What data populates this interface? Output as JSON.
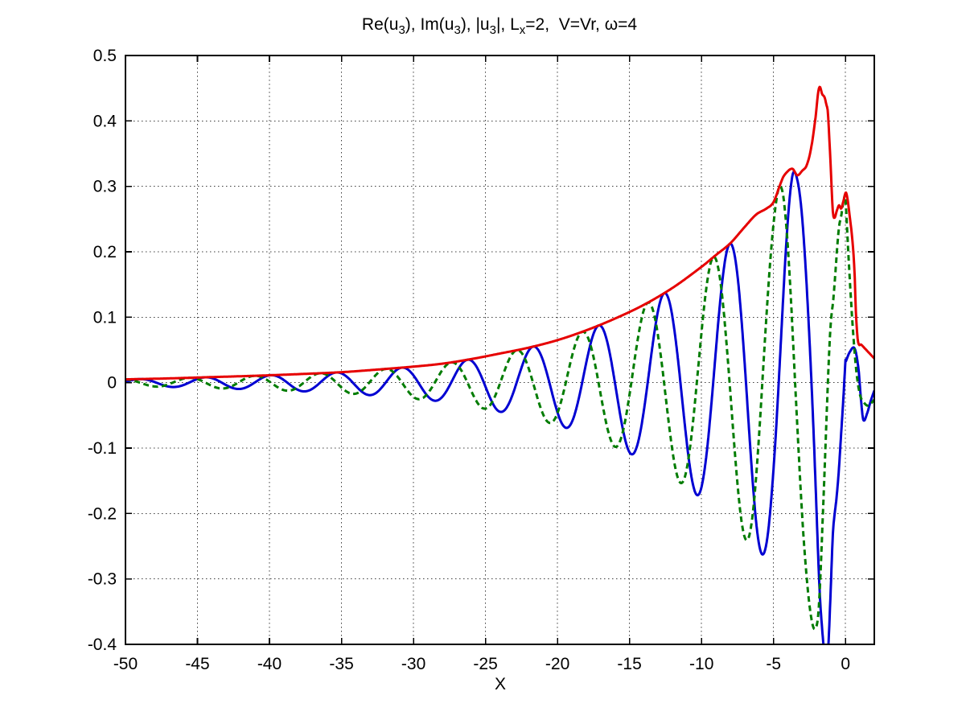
{
  "window": {
    "background": "#ffffff"
  },
  "title": {
    "plain": "Re(u3), Im(u3), |u3|, Lx=2,  V=Vr, ω=4",
    "parts": [
      {
        "t": "Re(u"
      },
      {
        "t": "3",
        "sub": true
      },
      {
        "t": "), Im(u"
      },
      {
        "t": "3",
        "sub": true
      },
      {
        "t": "), |u"
      },
      {
        "t": "3",
        "sub": true
      },
      {
        "t": "|, L"
      },
      {
        "t": "x",
        "sub": true
      },
      {
        "t": "=2,  V=Vr, ω=4"
      }
    ]
  },
  "chart_data": {
    "type": "line",
    "title": "Re(u3), Im(u3), |u3|, Lx=2,  V=Vr, ω=4",
    "xlabel": "X",
    "ylabel": "",
    "xlim": [
      -50,
      2
    ],
    "ylim": [
      -0.4,
      0.5
    ],
    "grid": "dotted-black-at-every-tick",
    "legend": "none",
    "box": true,
    "tick_style": "inward-on-all-four-sides",
    "x_ticks": {
      "values": [
        -50,
        -45,
        -40,
        -35,
        -30,
        -25,
        -20,
        -15,
        -10,
        -5,
        0
      ],
      "labels": [
        "-50",
        "-45",
        "-40",
        "-35",
        "-30",
        "-25",
        "-20",
        "-15",
        "-10",
        "-5",
        "0"
      ]
    },
    "y_ticks": {
      "values": [
        0.5,
        0.4,
        0.3,
        0.2,
        0.1,
        0,
        -0.1,
        -0.2,
        -0.3,
        -0.4
      ],
      "labels": [
        "0.5",
        "0.4",
        "0.3",
        "0.2",
        "0.1",
        "0",
        "-0.1",
        "-0.2",
        "-0.3",
        "-0.4"
      ]
    },
    "series": [
      {
        "name": "Re(u3)",
        "color": "#0000d2",
        "line_style": "solid",
        "line_width": 3,
        "construction": "envelope(x)*cos(k*(x-x0)) for x<=0, then tail_points",
        "tail_points": [
          [
            0,
            0.031
          ],
          [
            0.3,
            0.047
          ],
          [
            0.64,
            0.052
          ],
          [
            0.9,
            0.021
          ],
          [
            1.08,
            -0.027
          ],
          [
            1.24,
            -0.057
          ],
          [
            1.5,
            -0.047
          ],
          [
            1.75,
            -0.028
          ],
          [
            2,
            -0.012
          ]
        ]
      },
      {
        "name": "Im(u3)",
        "color": "#007c00",
        "line_style": "dashed",
        "line_width": 3,
        "construction": "-envelope(x)*sin(k*(x-x0)) for x<=0, then tail_points",
        "tail_points": [
          [
            0,
            0.283
          ],
          [
            0.25,
            0.176
          ],
          [
            0.5,
            0.086
          ],
          [
            0.75,
            0.018
          ],
          [
            1.0,
            -0.018
          ],
          [
            1.3,
            -0.031
          ],
          [
            1.6,
            -0.035
          ],
          [
            2,
            -0.026
          ]
        ]
      },
      {
        "name": "|u3|",
        "color": "#e60000",
        "line_style": "solid",
        "line_width": 3,
        "construction": "envelope(x) over full domain [-50,2]"
      }
    ],
    "phase_model": {
      "k": 1.381,
      "x0": -3.5,
      "period": 4.55
    },
    "envelope_points": [
      [
        -50,
        0.005
      ],
      [
        -47,
        0.0065
      ],
      [
        -44,
        0.0085
      ],
      [
        -41,
        0.0105
      ],
      [
        -38,
        0.013
      ],
      [
        -35,
        0.016
      ],
      [
        -32.5,
        0.02
      ],
      [
        -30,
        0.0245
      ],
      [
        -28,
        0.029
      ],
      [
        -26,
        0.036
      ],
      [
        -24,
        0.0445
      ],
      [
        -22,
        0.0535
      ],
      [
        -20,
        0.065
      ],
      [
        -18,
        0.08
      ],
      [
        -16,
        0.098
      ],
      [
        -14,
        0.119
      ],
      [
        -12,
        0.145
      ],
      [
        -10,
        0.177
      ],
      [
        -9,
        0.195
      ],
      [
        -8,
        0.213
      ],
      [
        -7,
        0.238
      ],
      [
        -6.2,
        0.257
      ],
      [
        -5.5,
        0.266
      ],
      [
        -5,
        0.276
      ],
      [
        -4.5,
        0.305
      ],
      [
        -4.25,
        0.317
      ],
      [
        -3.7,
        0.327
      ],
      [
        -3.35,
        0.317
      ],
      [
        -3.0,
        0.324
      ],
      [
        -2.7,
        0.332
      ],
      [
        -2.4,
        0.357
      ],
      [
        -2.1,
        0.402
      ],
      [
        -1.9,
        0.443
      ],
      [
        -1.78,
        0.452
      ],
      [
        -1.62,
        0.441
      ],
      [
        -1.45,
        0.436
      ],
      [
        -1.32,
        0.424
      ],
      [
        -1.22,
        0.412
      ],
      [
        -1.05,
        0.34
      ],
      [
        -0.88,
        0.262
      ],
      [
        -0.76,
        0.252
      ],
      [
        -0.6,
        0.263
      ],
      [
        -0.45,
        0.271
      ],
      [
        -0.3,
        0.266
      ],
      [
        -0.15,
        0.277
      ],
      [
        0.05,
        0.29
      ],
      [
        0.3,
        0.253
      ],
      [
        0.5,
        0.212
      ],
      [
        0.62,
        0.172
      ],
      [
        0.72,
        0.108
      ],
      [
        0.87,
        0.063
      ],
      [
        1.1,
        0.058
      ],
      [
        1.4,
        0.051
      ],
      [
        1.7,
        0.044
      ],
      [
        2,
        0.037
      ]
    ]
  }
}
